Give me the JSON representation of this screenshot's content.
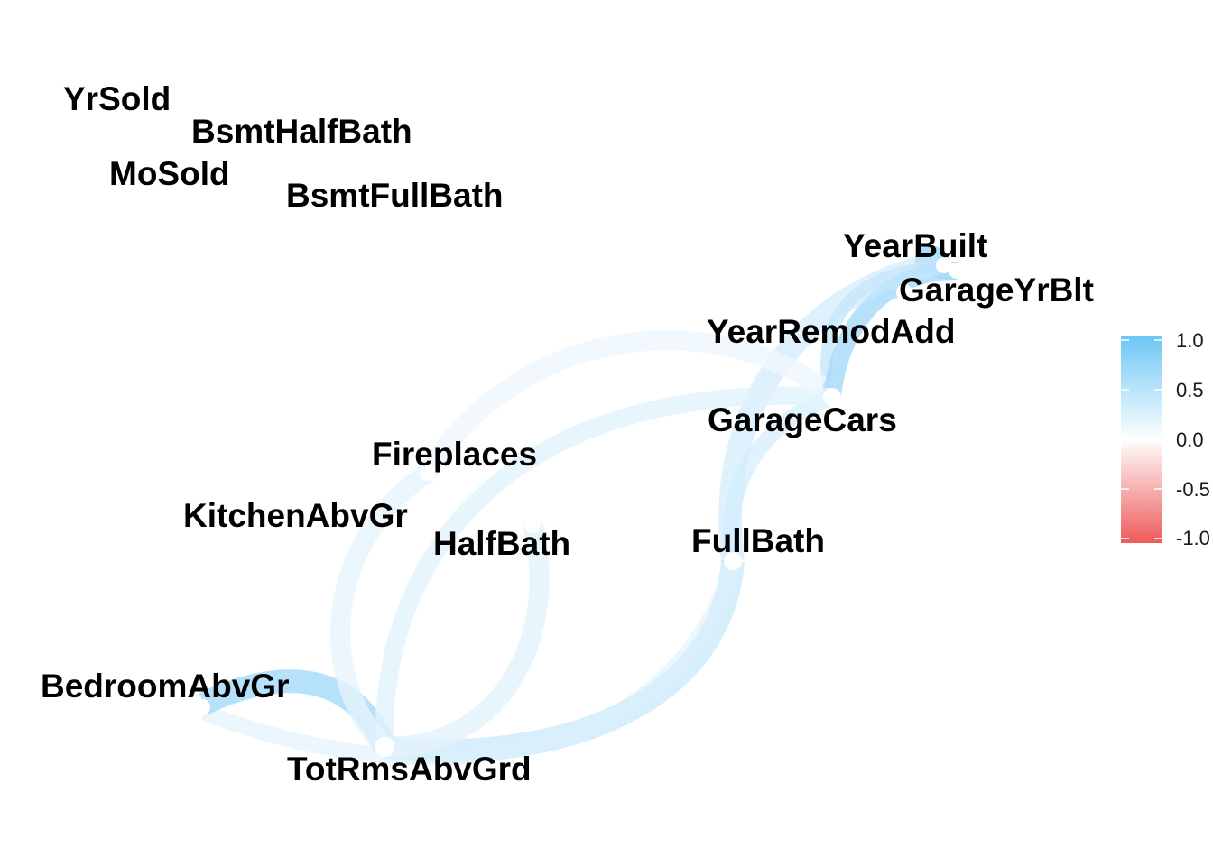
{
  "colors": {
    "positive": "#6cc6f5",
    "neutral": "#ffffff",
    "negative": "#ee5a5a",
    "label": "#000000"
  },
  "legend": {
    "ticks": [
      "1.0",
      "0.5",
      "0.0",
      "-0.5",
      "-1.0"
    ]
  },
  "nodes": {
    "YrSold": "YrSold",
    "BsmtHalfBath": "BsmtHalfBath",
    "MoSold": "MoSold",
    "BsmtFullBath": "BsmtFullBath",
    "YearBuilt": "YearBuilt",
    "GarageYrBlt": "GarageYrBlt",
    "YearRemodAdd": "YearRemodAdd",
    "GarageCars": "GarageCars",
    "Fireplaces": "Fireplaces",
    "KitchenAbvGr": "KitchenAbvGr",
    "HalfBath": "HalfBath",
    "FullBath": "FullBath",
    "BedroomAbvGr": "BedroomAbvGr",
    "TotRmsAbvGrd": "TotRmsAbvGrd"
  },
  "edges": [
    {
      "from": "YearBuilt",
      "to": "GarageYrBlt",
      "r": 0.83
    },
    {
      "from": "YearBuilt",
      "to": "YearRemodAdd",
      "r": 0.59
    },
    {
      "from": "YearBuilt",
      "to": "GarageCars",
      "r": 0.54
    },
    {
      "from": "GarageYrBlt",
      "to": "GarageCars",
      "r": 0.59
    },
    {
      "from": "YearRemodAdd",
      "to": "GarageCars",
      "r": 0.42
    },
    {
      "from": "YearBuilt",
      "to": "FullBath",
      "r": 0.47
    },
    {
      "from": "GarageCars",
      "to": "FullBath",
      "r": 0.47
    },
    {
      "from": "FullBath",
      "to": "TotRmsAbvGrd",
      "r": 0.55
    },
    {
      "from": "TotRmsAbvGrd",
      "to": "BedroomAbvGr",
      "r": 0.68
    },
    {
      "from": "TotRmsAbvGrd",
      "to": "HalfBath",
      "r": 0.34
    },
    {
      "from": "TotRmsAbvGrd",
      "to": "GarageCars",
      "r": 0.36
    },
    {
      "from": "TotRmsAbvGrd",
      "to": "Fireplaces",
      "r": 0.33
    },
    {
      "from": "Fireplaces",
      "to": "YearRemodAdd",
      "r": 0.2
    },
    {
      "from": "FullBath",
      "to": "BedroomAbvGr",
      "r": 0.36
    }
  ]
}
